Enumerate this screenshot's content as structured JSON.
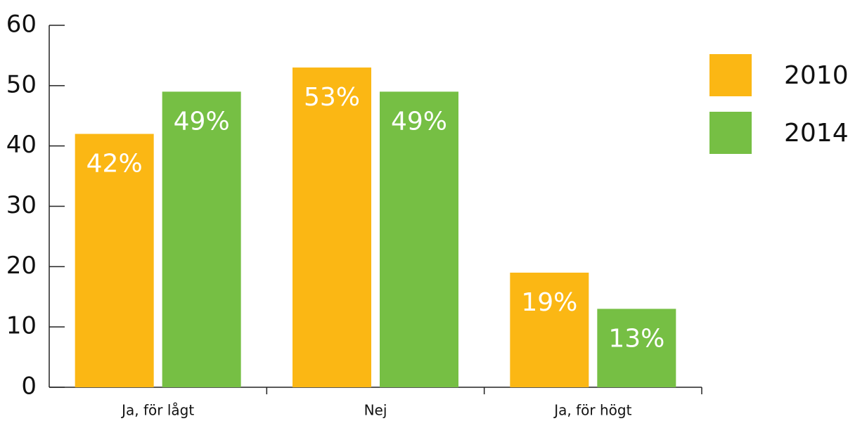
{
  "chart_data": {
    "type": "bar",
    "categories": [
      "Ja, för lågt",
      "Nej",
      "Ja, för högt"
    ],
    "series": [
      {
        "name": "2010",
        "color": "#fbb714",
        "values": [
          42,
          53,
          19
        ],
        "value_labels": [
          "42%",
          "53%",
          "19%"
        ]
      },
      {
        "name": "2014",
        "color": "#76bf44",
        "values": [
          49,
          49,
          13
        ],
        "value_labels": [
          "49%",
          "49%",
          "13%"
        ]
      }
    ],
    "ylim": [
      0,
      60
    ],
    "yticks": [
      0,
      10,
      20,
      30,
      40,
      50,
      60
    ],
    "legend": "right"
  }
}
